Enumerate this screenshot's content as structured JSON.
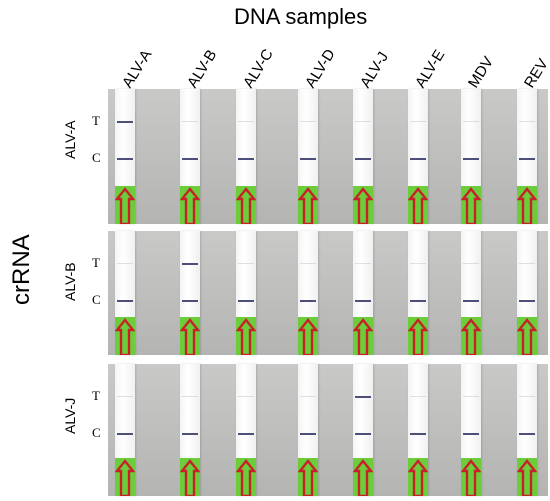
{
  "title": "DNA samples",
  "axis_label": "crRNA",
  "columns": [
    "ALV-A",
    "ALV-B",
    "ALV-C",
    "ALV-D",
    "ALV-J",
    "ALV-E",
    "MDV",
    "REV"
  ],
  "line_labels": {
    "test": "T",
    "control": "C"
  },
  "rows": [
    {
      "label": "ALV-A",
      "test_positive": [
        "ALV-A"
      ]
    },
    {
      "label": "ALV-B",
      "test_positive": [
        "ALV-B"
      ]
    },
    {
      "label": "ALV-J",
      "test_positive": [
        "ALV-J"
      ]
    }
  ],
  "colors": {
    "band": "#4b4f7a",
    "pad": "#6ccd3a",
    "arrow": "#c8202a",
    "panel": "#bcbcbb"
  }
}
